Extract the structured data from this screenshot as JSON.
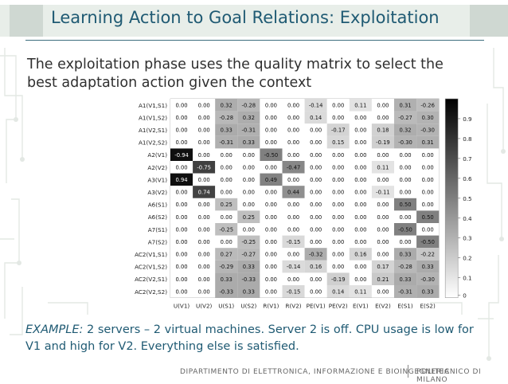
{
  "slide": {
    "title": "Learning Action to Goal Relations: Exploitation",
    "subtitle": "The exploitation phase uses the quality matrix to select the best adaptation action given the context",
    "example_lead": "EXAMPLE:",
    "example_body": " 2 servers – 2 virtual machines. Server 2 is off. CPU usage is low for V1 and high for V2. Everything else is satisfied."
  },
  "footer": {
    "department": "DIPARTIMENTO DI ELETTRONICA, INFORMAZIONE E BIOINGEGNERIA",
    "university": "POLITECNICO DI MILANO"
  },
  "colors": {
    "title": "#1f5a73",
    "accent": "#3c6e7e",
    "band": "#e8eee9"
  },
  "chart_data": {
    "type": "heatmap",
    "rows": [
      "A1(V1,S1)",
      "A1(V1,S2)",
      "A1(V2,S1)",
      "A1(V2,S2)",
      "A2(V1)",
      "A2(V2)",
      "A3(V1)",
      "A3(V2)",
      "A6(S1)",
      "A6(S2)",
      "A7(S1)",
      "A7(S2)",
      "AC2(V1,S1)",
      "AC2(V1,S2)",
      "AC2(V2,S1)",
      "AC2(V2,S2)"
    ],
    "columns": [
      "U(V1)",
      "U(V2)",
      "U(S1)",
      "U(S2)",
      "R(V1)",
      "R(V2)",
      "PE(V1)",
      "PE(V2)",
      "E(V1)",
      "E(V2)",
      "E(S1)",
      "E(S2)"
    ],
    "cell_labels": [
      [
        "0.00",
        "0.00",
        "0.32",
        "-0.28",
        "0.00",
        "0.00",
        "-0.14",
        "0.00",
        "0.11",
        "0.00",
        "0.31",
        "-0.26"
      ],
      [
        "0.00",
        "0.00",
        "-0.28",
        "0.32",
        "0.00",
        "0.00",
        "0.14",
        "0.00",
        "0.00",
        "0.00",
        "-0.27",
        "0.30"
      ],
      [
        "0.00",
        "0.00",
        "0.33",
        "-0.31",
        "0.00",
        "0.00",
        "0.00",
        "-0.17",
        "0.00",
        "0.18",
        "0.32",
        "-0.30"
      ],
      [
        "0.00",
        "0.00",
        "-0.31",
        "0.33",
        "0.00",
        "0.00",
        "0.00",
        "0.15",
        "0.00",
        "-0.19",
        "-0.30",
        "0.31"
      ],
      [
        "-0.94",
        "0.00",
        "0.00",
        "0.00",
        "-0.50",
        "0.00",
        "0.00",
        "0.00",
        "0.00",
        "0.00",
        "0.00",
        "0.00"
      ],
      [
        "0.00",
        "-0.75",
        "0.00",
        "0.00",
        "0.00",
        "-0.47",
        "0.00",
        "0.00",
        "0.00",
        "0.11",
        "0.00",
        "0.00"
      ],
      [
        "0.94",
        "0.00",
        "0.00",
        "0.00",
        "0.49",
        "0.00",
        "0.00",
        "0.00",
        "0.00",
        "0.00",
        "0.00",
        "0.00"
      ],
      [
        "0.00",
        "0.74",
        "0.00",
        "0.00",
        "0.00",
        "0.44",
        "0.00",
        "0.00",
        "0.00",
        "-0.11",
        "0.00",
        "0.00"
      ],
      [
        "0.00",
        "0.00",
        "0.25",
        "0.00",
        "0.00",
        "0.00",
        "0.00",
        "0.00",
        "0.00",
        "0.00",
        "0.50",
        "0.00"
      ],
      [
        "0.00",
        "0.00",
        "0.00",
        "0.25",
        "0.00",
        "0.00",
        "0.00",
        "0.00",
        "0.00",
        "0.00",
        "0.00",
        "0.50"
      ],
      [
        "0.00",
        "0.00",
        "-0.25",
        "0.00",
        "0.00",
        "0.00",
        "0.00",
        "0.00",
        "0.00",
        "0.00",
        "-0.50",
        "0.00"
      ],
      [
        "0.00",
        "0.00",
        "0.00",
        "-0.25",
        "0.00",
        "-0.15",
        "0.00",
        "0.00",
        "0.00",
        "0.00",
        "0.00",
        "-0.50"
      ],
      [
        "0.00",
        "0.00",
        "0.27",
        "-0.27",
        "0.00",
        "0.00",
        "-0.32",
        "0.00",
        "0.16",
        "0.00",
        "0.33",
        "-0.22"
      ],
      [
        "0.00",
        "0.00",
        "-0.29",
        "0.33",
        "0.00",
        "-0.14",
        "0.16",
        "0.00",
        "0.00",
        "0.17",
        "-0.28",
        "0.33"
      ],
      [
        "0.00",
        "0.00",
        "0.33",
        "-0.33",
        "0.00",
        "0.00",
        "0.00",
        "-0.19",
        "0.00",
        "0.21",
        "0.33",
        "-0.30"
      ],
      [
        "0.00",
        "0.00",
        "-0.33",
        "0.33",
        "0.00",
        "-0.15",
        "0.00",
        "0.14",
        "0.11",
        "0.00",
        "-0.31",
        "0.33"
      ]
    ],
    "colorbar_ticks": [
      "0.9",
      "0.8",
      "0.7",
      "0.6",
      "0.5",
      "0.4",
      "0.3",
      "0.2",
      "0.1",
      "0"
    ],
    "colorbar_range": [
      0,
      1
    ],
    "colormap": "gray-reversed"
  }
}
